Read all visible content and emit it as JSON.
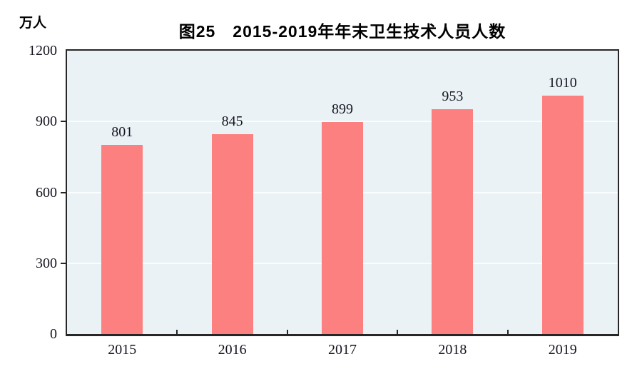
{
  "chart_data": {
    "type": "bar",
    "title": "图25　2015-2019年年末卫生技术人员人数",
    "unit_label": "万人",
    "categories": [
      "2015",
      "2016",
      "2017",
      "2018",
      "2019"
    ],
    "values": [
      801,
      845,
      899,
      953,
      1010
    ],
    "ylim": [
      0,
      1200
    ],
    "yticks": [
      0,
      300,
      600,
      900,
      1200
    ],
    "gridlines_at": [
      300,
      600,
      900
    ],
    "legend": "none",
    "grid": "horizontal",
    "colors": {
      "bar": "#FC8080",
      "plot_background": "#EAF2F6",
      "gridline": "#FAFDFE",
      "axis_frame": "#262626",
      "label_text": "#141420",
      "title_text": "#000000"
    }
  }
}
